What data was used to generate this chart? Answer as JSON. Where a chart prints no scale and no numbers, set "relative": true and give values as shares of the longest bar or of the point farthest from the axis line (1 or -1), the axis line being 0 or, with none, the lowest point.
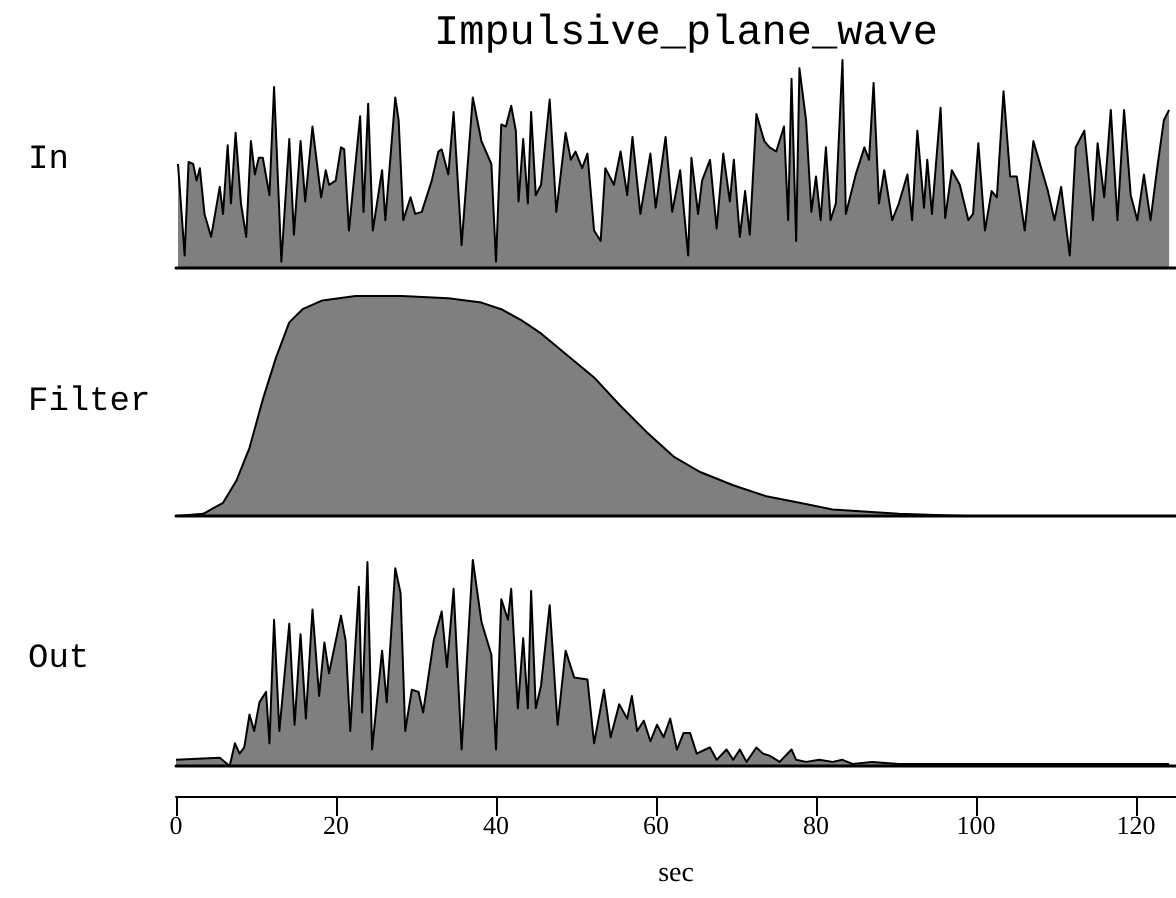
{
  "chart_data": [
    {
      "type": "area",
      "title": "Impulsive_plane_wave",
      "ylabel": "In",
      "relative": true,
      "xlim": [
        0,
        125
      ],
      "xticks": [
        0,
        20,
        40,
        60,
        80,
        100,
        120
      ],
      "tick_labels": false,
      "series": [
        {
          "color": "#000000",
          "x": [
            0.25,
            1.08,
            1.57,
            2.15,
            2.57,
            2.98,
            3.56,
            4.39,
            5.47,
            5.88,
            6.46,
            6.87,
            7.45,
            8.12,
            8.78,
            9.36,
            9.86,
            10.35,
            10.85,
            11.68,
            12.26,
            13.17,
            14.16,
            14.74,
            15.57,
            16.15,
            17.06,
            18.14,
            18.72,
            19.13,
            19.96,
            20.62,
            21.03,
            21.62,
            23.02,
            23.44,
            24.02,
            24.6,
            25.76,
            26.17,
            27.41,
            27.83,
            28.41,
            29.32,
            29.9,
            30.72,
            31.97,
            32.8,
            33.21,
            34.04,
            34.7,
            35.7,
            37.1,
            38.18,
            39.42,
            40.0,
            40.66,
            41.24,
            41.9,
            42.48,
            42.82,
            43.4,
            43.98,
            44.39,
            44.97,
            45.63,
            46.71,
            47.54,
            48.7,
            49.36,
            49.94,
            50.77,
            51.43,
            52.26,
            53.08,
            53.67,
            54.74,
            55.57,
            56.4,
            57.06,
            58.05,
            59.3,
            59.96,
            61.2,
            62.03,
            63.02,
            64.02,
            64.43,
            65.26,
            65.76,
            66.75,
            67.58,
            68.41,
            69.23,
            69.73,
            70.48,
            71.14,
            71.72,
            72.55,
            73.54,
            74.2,
            75.03,
            76.0,
            76.52,
            76.94,
            77.52,
            77.93,
            78.76,
            79.42,
            80.0,
            80.58,
            81.24,
            81.82,
            82.48,
            83.31,
            83.73,
            84.97,
            86.05,
            86.63,
            87.2,
            87.87,
            88.53,
            89.52,
            90.35,
            91.43,
            92.01,
            92.67,
            93.5,
            93.91,
            94.49,
            95.57,
            96.15,
            96.98,
            97.97,
            99.05,
            99.63,
            100.29,
            101.12,
            101.95,
            102.61,
            103.44,
            104.27,
            105.09,
            106.09,
            107.17,
            108.16,
            108.99,
            109.81,
            110.64,
            111.72,
            112.46,
            113.54,
            114.62,
            115.2,
            116.03,
            116.85,
            117.68,
            118.51,
            119.34,
            120.17,
            120.99,
            121.82,
            122.65,
            123.48,
            124.14
          ],
          "values": [
            0.5,
            0.06,
            0.51,
            0.5,
            0.42,
            0.48,
            0.26,
            0.15,
            0.39,
            0.26,
            0.59,
            0.31,
            0.65,
            0.31,
            0.15,
            0.61,
            0.45,
            0.53,
            0.53,
            0.35,
            0.87,
            0.03,
            0.62,
            0.16,
            0.61,
            0.32,
            0.68,
            0.34,
            0.47,
            0.4,
            0.42,
            0.58,
            0.57,
            0.18,
            0.73,
            0.27,
            0.79,
            0.18,
            0.47,
            0.23,
            0.82,
            0.71,
            0.23,
            0.34,
            0.26,
            0.27,
            0.42,
            0.56,
            0.57,
            0.45,
            0.75,
            0.11,
            0.82,
            0.61,
            0.5,
            0.03,
            0.69,
            0.68,
            0.78,
            0.66,
            0.32,
            0.62,
            0.31,
            0.75,
            0.35,
            0.4,
            0.81,
            0.27,
            0.65,
            0.52,
            0.56,
            0.48,
            0.55,
            0.18,
            0.13,
            0.48,
            0.4,
            0.56,
            0.35,
            0.63,
            0.26,
            0.55,
            0.29,
            0.63,
            0.27,
            0.47,
            0.06,
            0.53,
            0.26,
            0.42,
            0.52,
            0.19,
            0.55,
            0.32,
            0.52,
            0.15,
            0.37,
            0.16,
            0.74,
            0.61,
            0.58,
            0.56,
            0.68,
            0.23,
            0.91,
            0.13,
            0.96,
            0.71,
            0.27,
            0.44,
            0.23,
            0.58,
            0.23,
            0.31,
            1,
            0.26,
            0.45,
            0.58,
            0.52,
            0.89,
            0.31,
            0.47,
            0.23,
            0.31,
            0.45,
            0.23,
            0.66,
            0.29,
            0.52,
            0.26,
            0.77,
            0.24,
            0.47,
            0.4,
            0.23,
            0.26,
            0.6,
            0.18,
            0.37,
            0.34,
            0.85,
            0.44,
            0.44,
            0.18,
            0.61,
            0.48,
            0.37,
            0.23,
            0.39,
            0.06,
            0.58,
            0.66,
            0.23,
            0.6,
            0.34,
            0.76,
            0.23,
            0.76,
            0.35,
            0.23,
            0.45,
            0.23,
            0.48,
            0.71,
            0.76
          ]
        }
      ]
    },
    {
      "type": "area",
      "ylabel": "Filter",
      "relative": true,
      "xlim": [
        0,
        125
      ],
      "xticks": [
        0,
        20,
        40,
        60,
        80,
        100,
        120
      ],
      "tick_labels": false,
      "series": [
        {
          "color": "#000000",
          "x": [
            0.08,
            3.4,
            5.88,
            7.54,
            9.19,
            10.85,
            12.5,
            14.16,
            15.82,
            18.3,
            22.44,
            28.24,
            34.04,
            38.18,
            40.66,
            43.15,
            45.63,
            48.94,
            52.26,
            55.57,
            58.88,
            62.2,
            65.51,
            69.65,
            73.79,
            77.93,
            82.07,
            90.35,
            98.63,
            124.14
          ],
          "values": [
            0,
            0.01,
            0.06,
            0.16,
            0.31,
            0.53,
            0.72,
            0.88,
            0.94,
            0.98,
            1,
            1,
            0.99,
            0.97,
            0.94,
            0.89,
            0.83,
            0.73,
            0.63,
            0.5,
            0.38,
            0.27,
            0.2,
            0.14,
            0.09,
            0.06,
            0.03,
            0.01,
            0,
            0
          ]
        }
      ]
    },
    {
      "type": "area",
      "ylabel": "Out",
      "xlabel": "sec",
      "relative": true,
      "xlim": [
        0,
        125
      ],
      "xticks": [
        0,
        20,
        40,
        60,
        80,
        100,
        120
      ],
      "tick_labels": "x",
      "series": [
        {
          "color": "#000000",
          "x": [
            0,
            5.47,
            6.71,
            7.37,
            7.95,
            8.53,
            9.19,
            9.77,
            10.44,
            11.26,
            11.68,
            12.26,
            12.92,
            14.16,
            14.82,
            15.57,
            16.23,
            17.06,
            17.89,
            18.55,
            19.13,
            20.62,
            21.2,
            21.78,
            22.86,
            23.27,
            23.93,
            24.51,
            25.76,
            26.34,
            27.41,
            28.07,
            28.65,
            29.48,
            30.31,
            30.89,
            32.22,
            33.21,
            33.87,
            34.7,
            35.7,
            37.1,
            38.18,
            39.42,
            40.0,
            40.66,
            41.49,
            41.9,
            42.73,
            43.4,
            43.98,
            44.39,
            44.97,
            45.63,
            46.71,
            47.7,
            48.7,
            49.77,
            51.43,
            52.26,
            53.5,
            54.33,
            55.4,
            56.4,
            56.98,
            57.64,
            58.47,
            59.3,
            60.12,
            60.95,
            61.78,
            62.61,
            63.44,
            64.26,
            65.09,
            66.17,
            66.75,
            67.58,
            68.82,
            69.65,
            70.48,
            71.31,
            72.55,
            73.38,
            74.2,
            75.45,
            76.94,
            77.52,
            78.76,
            80.41,
            82.07,
            83.31,
            84.56,
            87.04,
            90.35,
            98.63,
            124.14
          ],
          "values": [
            0.03,
            0.04,
            0,
            0.11,
            0.06,
            0.09,
            0.25,
            0.17,
            0.31,
            0.36,
            0.11,
            0.71,
            0.17,
            0.69,
            0.2,
            0.64,
            0.23,
            0.76,
            0.34,
            0.6,
            0.45,
            0.73,
            0.61,
            0.17,
            0.87,
            0.26,
            0.99,
            0.08,
            0.56,
            0.31,
            0.96,
            0.84,
            0.17,
            0.37,
            0.36,
            0.26,
            0.61,
            0.75,
            0.48,
            0.86,
            0.08,
            1,
            0.7,
            0.54,
            0.08,
            0.81,
            0.71,
            0.86,
            0.28,
            0.62,
            0.28,
            0.85,
            0.28,
            0.39,
            0.78,
            0.2,
            0.56,
            0.43,
            0.42,
            0.11,
            0.37,
            0.14,
            0.3,
            0.23,
            0.34,
            0.17,
            0.22,
            0.12,
            0.2,
            0.14,
            0.23,
            0.08,
            0.16,
            0.16,
            0.06,
            0.08,
            0.09,
            0.03,
            0.08,
            0.03,
            0.08,
            0.02,
            0.09,
            0.06,
            0.05,
            0.02,
            0.08,
            0.03,
            0.02,
            0.03,
            0.02,
            0.03,
            0.01,
            0.02,
            0.01,
            0.01,
            0.01
          ]
        }
      ]
    }
  ]
}
